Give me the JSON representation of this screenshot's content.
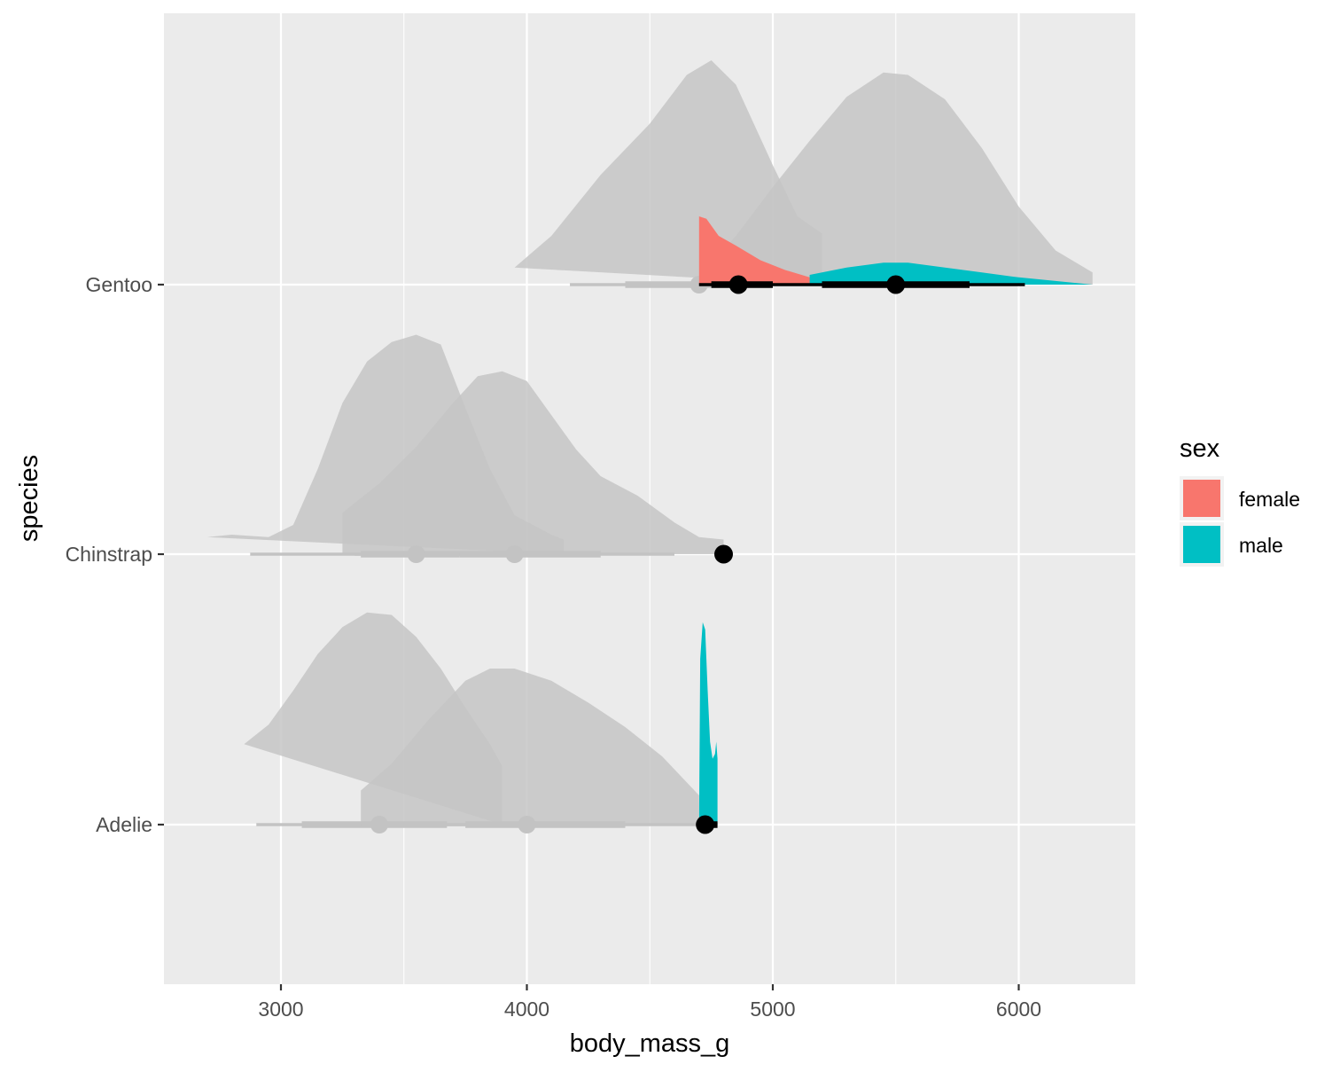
{
  "chart_data": {
    "type": "area",
    "subtype": "halfeye-slab",
    "xlabel": "body_mass_g",
    "ylabel": "species",
    "xlim": [
      2520,
      6460
    ],
    "x_ticks": [
      3000,
      4000,
      5000,
      6000
    ],
    "x_tick_labels": [
      "3000",
      "4000",
      "5000",
      "6000"
    ],
    "categories": [
      "Gentoo",
      "Chinstrap",
      "Adelie"
    ],
    "grid": true,
    "legend": {
      "title": "sex",
      "position": "right",
      "entries": [
        {
          "label": "female",
          "color": "#F8766D"
        },
        {
          "label": "male",
          "color": "#00BFC4"
        }
      ]
    },
    "colors": {
      "panel": "#EBEBEB",
      "grid": "#FFFFFF",
      "faded_slab": "#C6C6C6",
      "faded_interval": "#C3C3C3",
      "highlight_interval": "#000000"
    },
    "faded_slabs": [
      {
        "species": "Gentoo",
        "group": "female",
        "points": [
          [
            3950,
            0.07
          ],
          [
            4100,
            0.2
          ],
          [
            4300,
            0.45
          ],
          [
            4500,
            0.66
          ],
          [
            4650,
            0.86
          ],
          [
            4750,
            0.92
          ],
          [
            4850,
            0.82
          ],
          [
            5000,
            0.49
          ],
          [
            5100,
            0.28
          ],
          [
            5200,
            0.21
          ],
          [
            5200,
            0
          ]
        ]
      },
      {
        "species": "Gentoo",
        "group": "male",
        "points": [
          [
            4700,
            0
          ],
          [
            4700,
            0.04
          ],
          [
            4850,
            0.2
          ],
          [
            5000,
            0.4
          ],
          [
            5150,
            0.59
          ],
          [
            5300,
            0.77
          ],
          [
            5450,
            0.87
          ],
          [
            5550,
            0.86
          ],
          [
            5700,
            0.76
          ],
          [
            5850,
            0.56
          ],
          [
            6000,
            0.32
          ],
          [
            6150,
            0.14
          ],
          [
            6300,
            0.05
          ],
          [
            6300,
            0
          ]
        ]
      },
      {
        "species": "Chinstrap",
        "group": "female",
        "points": [
          [
            2700,
            0.07
          ],
          [
            2800,
            0.08
          ],
          [
            2950,
            0.07
          ],
          [
            3050,
            0.12
          ],
          [
            3150,
            0.35
          ],
          [
            3250,
            0.62
          ],
          [
            3350,
            0.79
          ],
          [
            3450,
            0.87
          ],
          [
            3550,
            0.9
          ],
          [
            3650,
            0.86
          ],
          [
            3750,
            0.6
          ],
          [
            3850,
            0.35
          ],
          [
            3950,
            0.16
          ],
          [
            4100,
            0.08
          ],
          [
            4150,
            0.06
          ],
          [
            4150,
            0
          ]
        ]
      },
      {
        "species": "Chinstrap",
        "group": "male",
        "points": [
          [
            3250,
            0
          ],
          [
            3250,
            0.17
          ],
          [
            3400,
            0.29
          ],
          [
            3550,
            0.44
          ],
          [
            3700,
            0.62
          ],
          [
            3800,
            0.73
          ],
          [
            3900,
            0.75
          ],
          [
            4000,
            0.71
          ],
          [
            4100,
            0.57
          ],
          [
            4200,
            0.43
          ],
          [
            4300,
            0.32
          ],
          [
            4450,
            0.24
          ],
          [
            4600,
            0.13
          ],
          [
            4700,
            0.07
          ],
          [
            4800,
            0.06
          ],
          [
            4800,
            0
          ]
        ]
      },
      {
        "species": "Adelie",
        "group": "female",
        "points": [
          [
            2850,
            0.33
          ],
          [
            2950,
            0.41
          ],
          [
            3050,
            0.55
          ],
          [
            3150,
            0.7
          ],
          [
            3250,
            0.81
          ],
          [
            3350,
            0.87
          ],
          [
            3450,
            0.86
          ],
          [
            3550,
            0.77
          ],
          [
            3650,
            0.64
          ],
          [
            3750,
            0.48
          ],
          [
            3850,
            0.33
          ],
          [
            3900,
            0.24
          ],
          [
            3900,
            0
          ]
        ]
      },
      {
        "species": "Adelie",
        "group": "male",
        "points": [
          [
            3325,
            0
          ],
          [
            3325,
            0.14
          ],
          [
            3450,
            0.25
          ],
          [
            3600,
            0.43
          ],
          [
            3750,
            0.59
          ],
          [
            3850,
            0.64
          ],
          [
            3950,
            0.64
          ],
          [
            4100,
            0.59
          ],
          [
            4250,
            0.5
          ],
          [
            4400,
            0.4
          ],
          [
            4550,
            0.28
          ],
          [
            4700,
            0.12
          ],
          [
            4700,
            0
          ]
        ]
      }
    ],
    "highlight_slabs": [
      {
        "species": "Gentoo",
        "sex": "female",
        "points": [
          [
            4700,
            0
          ],
          [
            4700,
            0.28
          ],
          [
            4730,
            0.27
          ],
          [
            4780,
            0.2
          ],
          [
            4850,
            0.16
          ],
          [
            4950,
            0.1
          ],
          [
            5050,
            0.06
          ],
          [
            5150,
            0.03
          ],
          [
            5200,
            0.02
          ],
          [
            5200,
            0
          ]
        ]
      },
      {
        "species": "Gentoo",
        "sex": "male",
        "points": [
          [
            5150,
            0
          ],
          [
            5150,
            0.04
          ],
          [
            5300,
            0.07
          ],
          [
            5450,
            0.09
          ],
          [
            5550,
            0.09
          ],
          [
            5700,
            0.07
          ],
          [
            5850,
            0.05
          ],
          [
            6000,
            0.03
          ],
          [
            6150,
            0.015
          ],
          [
            6300,
            0.0
          ],
          [
            6300,
            0
          ]
        ]
      },
      {
        "species": "Adelie",
        "sex": "male",
        "points": [
          [
            4700,
            0
          ],
          [
            4705,
            0.68
          ],
          [
            4715,
            0.83
          ],
          [
            4725,
            0.8
          ],
          [
            4735,
            0.55
          ],
          [
            4745,
            0.34
          ],
          [
            4755,
            0.27
          ],
          [
            4765,
            0.29
          ],
          [
            4770,
            0.34
          ],
          [
            4775,
            0.27
          ],
          [
            4775,
            0
          ]
        ]
      }
    ],
    "faded_intervals": [
      {
        "species": "Gentoo",
        "group": "female",
        "point": 4700,
        "inner": [
          4400,
          4750
        ],
        "outer": [
          4175,
          4750
        ]
      },
      {
        "species": "Chinstrap",
        "group": "female",
        "point": 3550,
        "inner": [
          3325,
          3725
        ],
        "outer": [
          2875,
          4000
        ]
      },
      {
        "species": "Chinstrap",
        "group": "male",
        "point": 3950,
        "inner": [
          3725,
          4300
        ],
        "outer": [
          3300,
          4600
        ]
      },
      {
        "species": "Adelie",
        "group": "female",
        "point": 3400,
        "inner": [
          3085,
          3675
        ],
        "outer": [
          2900,
          3750
        ]
      },
      {
        "species": "Adelie",
        "group": "male",
        "point": 4000,
        "inner": [
          3750,
          4400
        ],
        "outer": [
          3325,
          4700
        ]
      }
    ],
    "highlight_intervals": [
      {
        "species": "Gentoo",
        "sex": "female",
        "point": 4860,
        "inner": [
          4750,
          5000
        ],
        "outer": [
          4700,
          5200
        ]
      },
      {
        "species": "Gentoo",
        "sex": "male",
        "point": 5500,
        "inner": [
          5200,
          5800
        ],
        "outer": [
          5200,
          6025
        ]
      },
      {
        "species": "Chinstrap",
        "sex": "male",
        "point": 4800,
        "inner": null,
        "outer": null
      },
      {
        "species": "Adelie",
        "sex": "male",
        "point": 4725,
        "inner": [
          4700,
          4775
        ],
        "outer": [
          4700,
          4775
        ]
      }
    ]
  }
}
